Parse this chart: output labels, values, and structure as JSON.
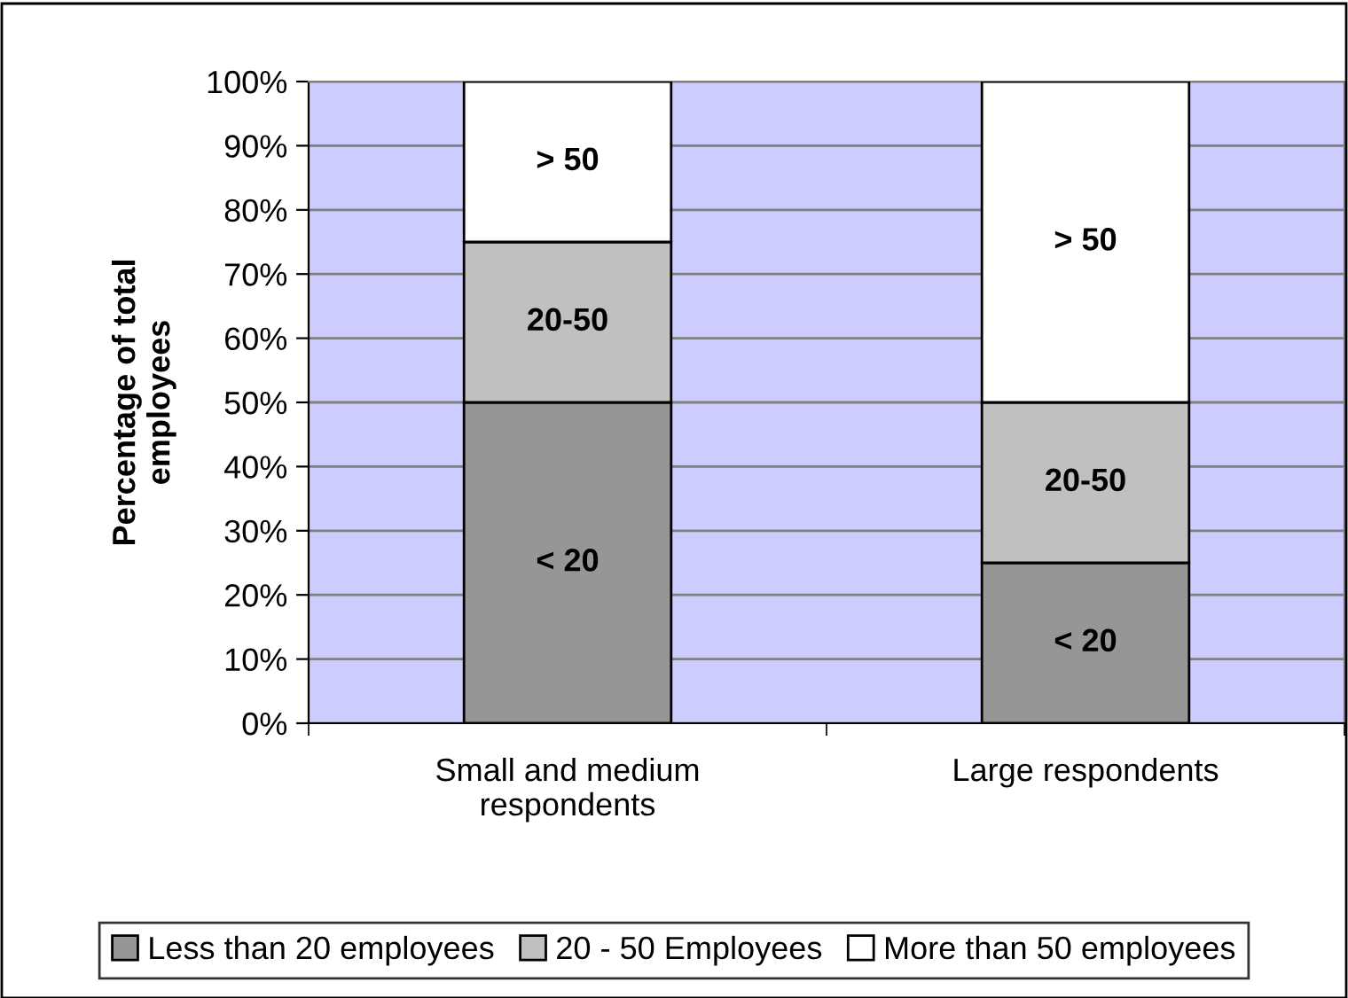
{
  "chart_data": {
    "type": "bar",
    "stacked": true,
    "ylabel": "Percentage of total\nemployees",
    "categories": [
      "Small and medium\nrespondents",
      "Large respondents"
    ],
    "series": [
      {
        "name": "Less than 20 employees",
        "color": "#969696",
        "values": [
          50,
          25
        ],
        "value_labels": [
          "< 20",
          "< 20"
        ]
      },
      {
        "name": "20 - 50 Employees",
        "color": "#c0c0c0",
        "values": [
          25,
          25
        ],
        "value_labels": [
          "20-50",
          "20-50"
        ]
      },
      {
        "name": "More than 50 employees",
        "color": "#ffffff",
        "values": [
          25,
          50
        ],
        "value_labels": [
          "> 50",
          "> 50"
        ]
      }
    ],
    "ylim": [
      0,
      100
    ],
    "yticks": [
      {
        "value": 0,
        "label": "0%"
      },
      {
        "value": 10,
        "label": "10%"
      },
      {
        "value": 20,
        "label": "20%"
      },
      {
        "value": 30,
        "label": "30%"
      },
      {
        "value": 40,
        "label": "40%"
      },
      {
        "value": 50,
        "label": "50%"
      },
      {
        "value": 60,
        "label": "60%"
      },
      {
        "value": 70,
        "label": "70%"
      },
      {
        "value": 80,
        "label": "80%"
      },
      {
        "value": 90,
        "label": "90%"
      },
      {
        "value": 100,
        "label": "100%"
      }
    ],
    "grid": "y",
    "legend": "bottom"
  }
}
